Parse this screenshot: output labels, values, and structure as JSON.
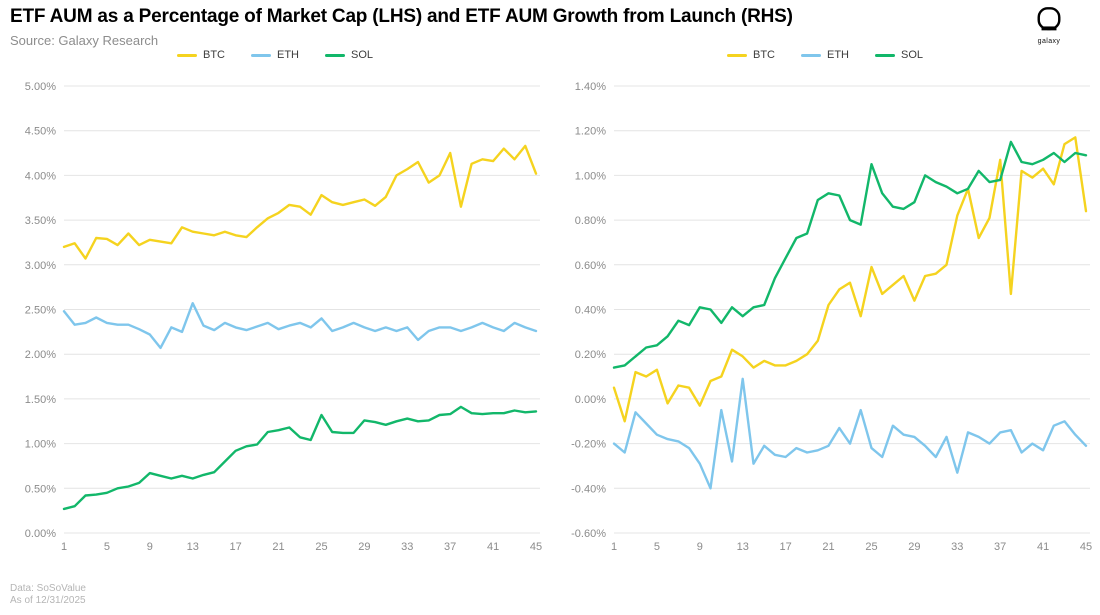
{
  "header": {
    "title": "ETF AUM as a Percentage of Market Cap (LHS) and ETF AUM Growth from Launch (RHS)",
    "source": "Source: Galaxy Research"
  },
  "logo": {
    "label": "galaxy"
  },
  "footer": {
    "line1": "Data: SoSoValue",
    "line2": "As of 12/31/2025"
  },
  "colors": {
    "btc": "#f5d31f",
    "eth": "#7fc6ec",
    "sol": "#12b76a",
    "grid": "#e4e4e4",
    "axis_text": "#8b8b8b"
  },
  "chart_data": [
    {
      "type": "line",
      "name": "ETF AUM as a Percentage of Market Cap (LHS)",
      "xlabel": "",
      "ylabel": "",
      "ylim": [
        0.0,
        5.0
      ],
      "yticks": [
        5.0,
        4.5,
        4.0,
        3.5,
        3.0,
        2.5,
        2.0,
        1.5,
        1.0,
        0.5,
        0.0
      ],
      "xlim": [
        1,
        45
      ],
      "xticks": [
        1,
        5,
        9,
        13,
        17,
        21,
        25,
        29,
        33,
        37,
        41,
        45
      ],
      "grid": true,
      "legend_position": "top-center",
      "x": [
        1,
        2,
        3,
        4,
        5,
        6,
        7,
        8,
        9,
        10,
        11,
        12,
        13,
        14,
        15,
        16,
        17,
        18,
        19,
        20,
        21,
        22,
        23,
        24,
        25,
        26,
        27,
        28,
        29,
        30,
        31,
        32,
        33,
        34,
        35,
        36,
        37,
        38,
        39,
        40,
        41,
        42,
        43,
        44,
        45
      ],
      "series": [
        {
          "name": "BTC",
          "color_key": "btc",
          "values": [
            3.2,
            3.24,
            3.07,
            3.3,
            3.29,
            3.22,
            3.35,
            3.22,
            3.28,
            3.26,
            3.24,
            3.42,
            3.37,
            3.35,
            3.33,
            3.37,
            3.33,
            3.31,
            3.42,
            3.52,
            3.58,
            3.67,
            3.65,
            3.56,
            3.78,
            3.7,
            3.67,
            3.7,
            3.73,
            3.66,
            3.76,
            4.0,
            4.07,
            4.15,
            3.92,
            4.0,
            4.25,
            3.65,
            4.13,
            4.18,
            4.16,
            4.3,
            4.18,
            4.33,
            4.02
          ]
        },
        {
          "name": "ETH",
          "color_key": "eth",
          "values": [
            2.48,
            2.33,
            2.35,
            2.41,
            2.35,
            2.33,
            2.33,
            2.28,
            2.22,
            2.07,
            2.3,
            2.25,
            2.57,
            2.32,
            2.27,
            2.35,
            2.3,
            2.27,
            2.31,
            2.35,
            2.28,
            2.32,
            2.35,
            2.3,
            2.4,
            2.26,
            2.3,
            2.35,
            2.3,
            2.26,
            2.3,
            2.26,
            2.3,
            2.16,
            2.26,
            2.3,
            2.3,
            2.26,
            2.3,
            2.35,
            2.3,
            2.26,
            2.35,
            2.3,
            2.26
          ]
        },
        {
          "name": "SOL",
          "color_key": "sol",
          "values": [
            0.27,
            0.3,
            0.42,
            0.43,
            0.45,
            0.5,
            0.52,
            0.56,
            0.67,
            0.64,
            0.61,
            0.64,
            0.61,
            0.65,
            0.68,
            0.8,
            0.92,
            0.97,
            0.99,
            1.13,
            1.15,
            1.18,
            1.07,
            1.04,
            1.32,
            1.13,
            1.12,
            1.12,
            1.26,
            1.24,
            1.21,
            1.25,
            1.28,
            1.25,
            1.26,
            1.32,
            1.33,
            1.41,
            1.34,
            1.33,
            1.34,
            1.34,
            1.37,
            1.35,
            1.36
          ]
        }
      ]
    },
    {
      "type": "line",
      "name": "ETF AUM Growth from Launch (RHS)",
      "xlabel": "",
      "ylabel": "",
      "ylim": [
        -0.6,
        1.4
      ],
      "yticks": [
        1.4,
        1.2,
        1.0,
        0.8,
        0.6,
        0.4,
        0.2,
        0.0,
        -0.2,
        -0.4,
        -0.6
      ],
      "xlim": [
        1,
        45
      ],
      "xticks": [
        1,
        5,
        9,
        13,
        17,
        21,
        25,
        29,
        33,
        37,
        41,
        45
      ],
      "grid": true,
      "legend_position": "top-center",
      "x": [
        1,
        2,
        3,
        4,
        5,
        6,
        7,
        8,
        9,
        10,
        11,
        12,
        13,
        14,
        15,
        16,
        17,
        18,
        19,
        20,
        21,
        22,
        23,
        24,
        25,
        26,
        27,
        28,
        29,
        30,
        31,
        32,
        33,
        34,
        35,
        36,
        37,
        38,
        39,
        40,
        41,
        42,
        43,
        44,
        45
      ],
      "series": [
        {
          "name": "BTC",
          "color_key": "btc",
          "values": [
            0.05,
            -0.1,
            0.12,
            0.1,
            0.13,
            -0.02,
            0.06,
            0.05,
            -0.03,
            0.08,
            0.1,
            0.22,
            0.19,
            0.14,
            0.17,
            0.15,
            0.15,
            0.17,
            0.2,
            0.26,
            0.42,
            0.49,
            0.52,
            0.37,
            0.59,
            0.47,
            0.51,
            0.55,
            0.44,
            0.55,
            0.56,
            0.6,
            0.82,
            0.94,
            0.72,
            0.81,
            1.07,
            0.47,
            1.02,
            0.99,
            1.03,
            0.96,
            1.14,
            1.17,
            0.84
          ]
        },
        {
          "name": "ETH",
          "color_key": "eth",
          "values": [
            -0.2,
            -0.24,
            -0.06,
            -0.11,
            -0.16,
            -0.18,
            -0.19,
            -0.22,
            -0.29,
            -0.4,
            -0.05,
            -0.28,
            0.09,
            -0.29,
            -0.21,
            -0.25,
            -0.26,
            -0.22,
            -0.24,
            -0.23,
            -0.21,
            -0.13,
            -0.2,
            -0.05,
            -0.22,
            -0.26,
            -0.12,
            -0.16,
            -0.17,
            -0.21,
            -0.26,
            -0.17,
            -0.33,
            -0.15,
            -0.17,
            -0.2,
            -0.15,
            -0.14,
            -0.24,
            -0.2,
            -0.23,
            -0.12,
            -0.1,
            -0.16,
            -0.21
          ]
        },
        {
          "name": "SOL",
          "color_key": "sol",
          "values": [
            0.14,
            0.15,
            0.19,
            0.23,
            0.24,
            0.28,
            0.35,
            0.33,
            0.41,
            0.4,
            0.34,
            0.41,
            0.37,
            0.41,
            0.42,
            0.54,
            0.63,
            0.72,
            0.74,
            0.89,
            0.92,
            0.91,
            0.8,
            0.78,
            1.05,
            0.92,
            0.86,
            0.85,
            0.88,
            1.0,
            0.97,
            0.95,
            0.92,
            0.94,
            1.02,
            0.97,
            0.98,
            1.15,
            1.06,
            1.05,
            1.07,
            1.1,
            1.06,
            1.1,
            1.09
          ]
        }
      ]
    }
  ]
}
